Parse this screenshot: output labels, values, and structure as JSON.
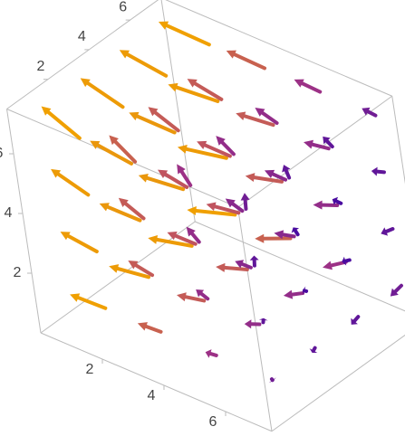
{
  "chart_data": {
    "type": "vector3d",
    "xlim": [
      0,
      7.5
    ],
    "ylim": [
      0,
      7.5
    ],
    "zlim": [
      0,
      7.5
    ],
    "xticks": [
      2,
      4,
      6
    ],
    "yticks": [
      2,
      4,
      6
    ],
    "zticks": [
      2,
      4,
      6
    ],
    "colors": [
      "#4a0ca0",
      "#b03a80",
      "#f0a000"
    ],
    "points": [
      [
        1,
        1,
        1
      ],
      [
        1,
        1,
        3
      ],
      [
        1,
        1,
        5
      ],
      [
        1,
        1,
        7
      ],
      [
        1,
        3,
        1
      ],
      [
        1,
        3,
        3
      ],
      [
        1,
        3,
        5
      ],
      [
        1,
        3,
        7
      ],
      [
        1,
        5,
        1
      ],
      [
        1,
        5,
        3
      ],
      [
        1,
        5,
        5
      ],
      [
        1,
        5,
        7
      ],
      [
        1,
        7,
        1
      ],
      [
        1,
        7,
        3
      ],
      [
        1,
        7,
        5
      ],
      [
        1,
        7,
        7
      ],
      [
        3,
        1,
        1
      ],
      [
        3,
        1,
        3
      ],
      [
        3,
        1,
        5
      ],
      [
        3,
        1,
        7
      ],
      [
        3,
        3,
        1
      ],
      [
        3,
        3,
        3
      ],
      [
        3,
        3,
        5
      ],
      [
        3,
        3,
        7
      ],
      [
        3,
        5,
        1
      ],
      [
        3,
        5,
        3
      ],
      [
        3,
        5,
        5
      ],
      [
        3,
        5,
        7
      ],
      [
        3,
        7,
        1
      ],
      [
        3,
        7,
        3
      ],
      [
        3,
        7,
        5
      ],
      [
        3,
        7,
        7
      ],
      [
        5,
        1,
        1
      ],
      [
        5,
        1,
        3
      ],
      [
        5,
        1,
        5
      ],
      [
        5,
        1,
        7
      ],
      [
        5,
        3,
        1
      ],
      [
        5,
        3,
        3
      ],
      [
        5,
        3,
        5
      ],
      [
        5,
        3,
        7
      ],
      [
        5,
        5,
        1
      ],
      [
        5,
        5,
        3
      ],
      [
        5,
        5,
        5
      ],
      [
        5,
        5,
        7
      ],
      [
        5,
        7,
        1
      ],
      [
        5,
        7,
        3
      ],
      [
        5,
        7,
        5
      ],
      [
        5,
        7,
        7
      ],
      [
        7,
        1,
        1
      ],
      [
        7,
        1,
        3
      ],
      [
        7,
        1,
        5
      ],
      [
        7,
        1,
        7
      ],
      [
        7,
        3,
        1
      ],
      [
        7,
        3,
        3
      ],
      [
        7,
        3,
        5
      ],
      [
        7,
        3,
        7
      ],
      [
        7,
        5,
        1
      ],
      [
        7,
        5,
        3
      ],
      [
        7,
        5,
        5
      ],
      [
        7,
        5,
        7
      ],
      [
        7,
        7,
        1
      ],
      [
        7,
        7,
        3
      ],
      [
        7,
        7,
        5
      ],
      [
        7,
        7,
        7
      ]
    ],
    "vectors": [
      [
        -1.4,
        0.3,
        -0.3
      ],
      [
        -1.4,
        0.3,
        -0.1
      ],
      [
        -1.4,
        0.3,
        0.1
      ],
      [
        -1.4,
        0.3,
        0.3
      ],
      [
        -1.4,
        0.1,
        -0.3
      ],
      [
        -1.4,
        0.1,
        -0.1
      ],
      [
        -1.4,
        0.1,
        0.1
      ],
      [
        -1.4,
        0.1,
        0.3
      ],
      [
        -1.4,
        -0.1,
        -0.3
      ],
      [
        -1.4,
        -0.1,
        -0.1
      ],
      [
        -1.4,
        -0.1,
        0.1
      ],
      [
        -1.4,
        -0.1,
        0.3
      ],
      [
        -1.4,
        -0.3,
        -0.3
      ],
      [
        -1.4,
        -0.3,
        -0.1
      ],
      [
        -1.4,
        -0.3,
        0.1
      ],
      [
        -1.4,
        -0.3,
        0.3
      ],
      [
        -1.0,
        0.3,
        -0.3
      ],
      [
        -1.0,
        0.3,
        -0.1
      ],
      [
        -1.0,
        0.3,
        0.1
      ],
      [
        -1.0,
        0.3,
        0.3
      ],
      [
        -1.0,
        0.1,
        -0.3
      ],
      [
        -1.0,
        0.1,
        -0.1
      ],
      [
        -1.0,
        0.1,
        0.1
      ],
      [
        -1.0,
        0.1,
        0.3
      ],
      [
        -1.0,
        -0.1,
        -0.3
      ],
      [
        -1.0,
        -0.1,
        -0.1
      ],
      [
        -1.0,
        -0.1,
        0.1
      ],
      [
        -1.0,
        -0.1,
        0.3
      ],
      [
        -1.0,
        -0.3,
        -0.3
      ],
      [
        -1.0,
        -0.3,
        -0.1
      ],
      [
        -1.0,
        -0.3,
        0.1
      ],
      [
        -1.0,
        -0.3,
        0.3
      ],
      [
        -0.6,
        0.3,
        -0.3
      ],
      [
        -0.6,
        0.3,
        -0.1
      ],
      [
        -0.6,
        0.3,
        0.1
      ],
      [
        -0.6,
        0.3,
        0.3
      ],
      [
        -0.6,
        0.1,
        -0.3
      ],
      [
        -0.6,
        0.1,
        -0.1
      ],
      [
        -0.6,
        0.1,
        0.1
      ],
      [
        -0.6,
        0.1,
        0.3
      ],
      [
        -0.6,
        -0.1,
        -0.3
      ],
      [
        -0.6,
        -0.1,
        -0.1
      ],
      [
        -0.6,
        -0.1,
        0.1
      ],
      [
        -0.6,
        -0.1,
        0.3
      ],
      [
        -0.6,
        -0.3,
        -0.3
      ],
      [
        -0.6,
        -0.3,
        -0.1
      ],
      [
        -0.6,
        -0.3,
        0.1
      ],
      [
        -0.6,
        -0.3,
        0.3
      ],
      [
        -0.2,
        0.3,
        -0.3
      ],
      [
        -0.2,
        0.3,
        -0.1
      ],
      [
        -0.2,
        0.3,
        0.1
      ],
      [
        -0.2,
        0.3,
        0.3
      ],
      [
        -0.2,
        0.1,
        -0.3
      ],
      [
        -0.2,
        0.1,
        -0.1
      ],
      [
        -0.2,
        0.1,
        0.1
      ],
      [
        -0.2,
        0.1,
        0.3
      ],
      [
        -0.2,
        -0.1,
        -0.3
      ],
      [
        -0.2,
        -0.1,
        -0.1
      ],
      [
        -0.2,
        -0.1,
        0.1
      ],
      [
        -0.2,
        -0.1,
        0.3
      ],
      [
        -0.2,
        -0.3,
        -0.3
      ],
      [
        -0.2,
        -0.3,
        -0.1
      ],
      [
        -0.2,
        -0.3,
        0.1
      ],
      [
        -0.2,
        -0.3,
        0.3
      ]
    ]
  }
}
